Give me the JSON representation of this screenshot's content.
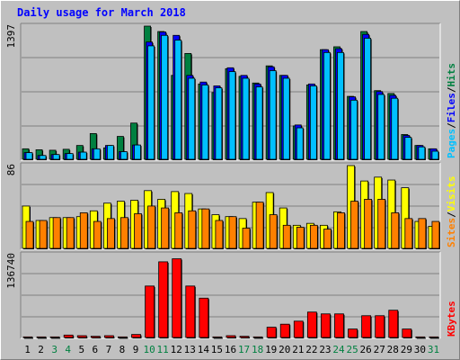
{
  "title": "Daily usage for March 2018",
  "colors": {
    "hits": "#008040",
    "files": "#0000ff",
    "pages": "#00c0ff",
    "visits": "#ffff00",
    "sites": "#ff8000",
    "kbytes": "#ff0000"
  },
  "panels": {
    "top": {
      "max_label": "1397",
      "legend": [
        "Pages",
        "Files",
        "Hits"
      ],
      "legend_sep": "/"
    },
    "mid": {
      "max_label": "86",
      "legend": [
        "Sites",
        "Visits"
      ],
      "legend_sep": "/"
    },
    "bot": {
      "max_label": "136740",
      "legend": [
        "KBytes"
      ],
      "legend_sep": "/"
    }
  },
  "day_label_colors": {
    "weekday": "#000000",
    "weekend": "#008040"
  },
  "chart_data": {
    "type": "bar",
    "title": "Daily usage for March 2018",
    "categories": [
      "1",
      "2",
      "3",
      "4",
      "5",
      "6",
      "7",
      "8",
      "9",
      "10",
      "11",
      "12",
      "13",
      "14",
      "15",
      "16",
      "17",
      "18",
      "19",
      "20",
      "21",
      "22",
      "23",
      "24",
      "25",
      "26",
      "27",
      "28",
      "29",
      "30",
      "31"
    ],
    "weekend_days": [
      "3",
      "4",
      "10",
      "11",
      "17",
      "18",
      "24",
      "25",
      "31"
    ],
    "panels": [
      {
        "name": "hits-files-pages",
        "ylim": [
          0,
          1397
        ],
        "max_label": "1397",
        "series": [
          {
            "name": "Hits",
            "values": [
              110,
              100,
              95,
              105,
              145,
              270,
              120,
              240,
              380,
              1397,
              1340,
              880,
              1110,
              790,
              700,
              950,
              870,
              800,
              980,
              880,
              350,
              780,
              1150,
              1180,
              660,
              1340,
              720,
              690,
              260,
              145,
              110
            ]
          },
          {
            "name": "Files",
            "values": [
              70,
              40,
              50,
              60,
              75,
              110,
              145,
              80,
              150,
              1230,
              1335,
              1300,
              880,
              810,
              770,
              960,
              880,
              790,
              970,
              880,
              360,
              790,
              1150,
              1160,
              655,
              1310,
              710,
              670,
              250,
              145,
              110
            ]
          },
          {
            "name": "Pages",
            "values": [
              70,
              40,
              50,
              60,
              75,
              110,
              145,
              80,
              150,
              1190,
              1300,
              1250,
              850,
              780,
              750,
              920,
              850,
              760,
              930,
              850,
              330,
              770,
              1120,
              1120,
              620,
              1270,
              680,
              640,
              230,
              130,
              85
            ]
          }
        ]
      },
      {
        "name": "visits-sites",
        "ylim": [
          0,
          86
        ],
        "max_label": "86",
        "series": [
          {
            "name": "Visits",
            "values": [
              44,
              29,
              32,
              32,
              33,
              39,
              47,
              49,
              50,
              60,
              51,
              59,
              57,
              41,
              35,
              33,
              31,
              48,
              58,
              42,
              24,
              26,
              24,
              38,
              86,
              70,
              74,
              71,
              63,
              28,
              23
            ]
          },
          {
            "name": "Sites",
            "values": [
              28,
              29,
              32,
              32,
              37,
              28,
              31,
              32,
              36,
              44,
              42,
              37,
              39,
              41,
              29,
              33,
              21,
              48,
              35,
              24,
              22,
              24,
              20,
              37,
              49,
              51,
              51,
              37,
              31,
              31,
              28
            ]
          }
        ]
      },
      {
        "name": "kbytes",
        "ylim": [
          0,
          136740
        ],
        "max_label": "136740",
        "series": [
          {
            "name": "KBytes",
            "values": [
              1000,
              1000,
              1000,
              4000,
              3000,
              2000,
              3000,
              1000,
              5000,
              85000,
              125000,
              130000,
              85000,
              65000,
              1000,
              3000,
              2000,
              1000,
              17000,
              22000,
              27000,
              42000,
              39000,
              39000,
              14000,
              36000,
              36000,
              45000,
              14000,
              1000,
              1000
            ]
          }
        ]
      }
    ]
  }
}
